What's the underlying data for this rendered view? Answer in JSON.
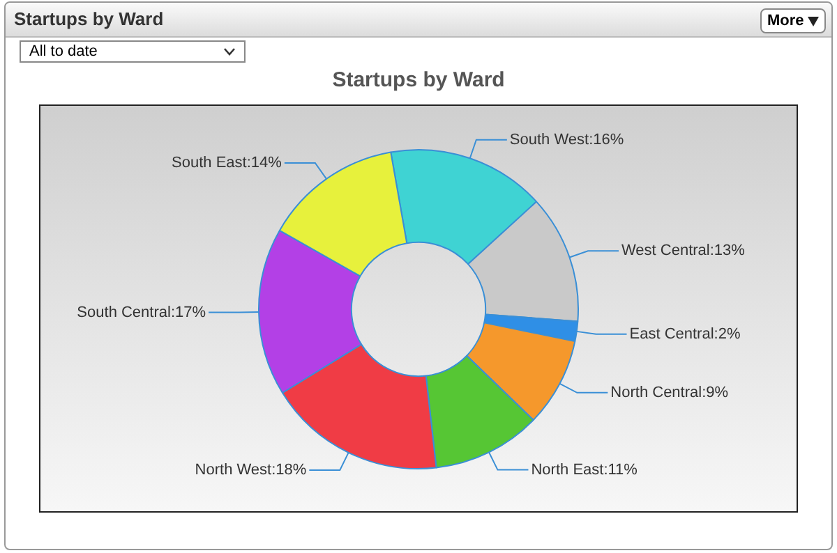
{
  "chart_data": {
    "type": "donut",
    "title": "Startups by Ward",
    "categories": [
      "South West",
      "West Central",
      "East Central",
      "North Central",
      "North East",
      "North West",
      "South Central",
      "South East"
    ],
    "values": [
      16,
      13,
      2,
      9,
      11,
      18,
      17,
      14
    ],
    "colors": [
      "#3fd3d3",
      "#c9c9c9",
      "#2f8fe6",
      "#f5982c",
      "#56c634",
      "#f03c45",
      "#b340e6",
      "#e7f13c"
    ],
    "value_labels": [
      ":16%",
      ":13%",
      ":2%",
      ":9%",
      ":11%",
      ":18%",
      ":17%",
      ":14%"
    ],
    "legend": false,
    "annotations": [
      "Startups by Ward",
      "All to date",
      "More"
    ]
  }
}
